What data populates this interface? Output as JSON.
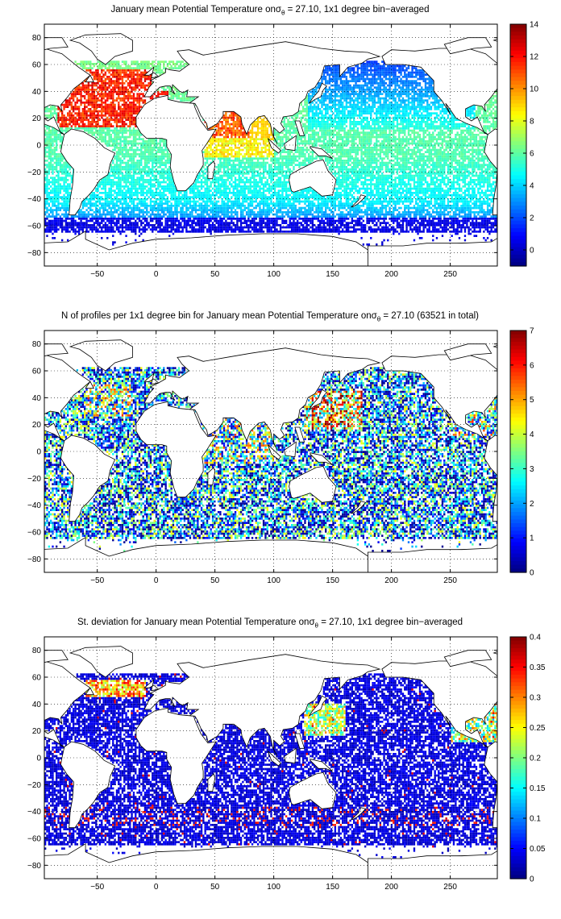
{
  "chart_data": [
    {
      "type": "heatmap",
      "title": "January mean Potential Temperature on",
      "title_sigma": "σ",
      "title_sub": "θ",
      "title_rest": " = 27.10, 1x1 degree bin−averaged",
      "x_ticks": [
        "−50",
        "0",
        "50",
        "100",
        "150",
        "200",
        "250"
      ],
      "x_tick_values": [
        -50,
        0,
        50,
        100,
        150,
        200,
        250
      ],
      "y_ticks": [
        "80",
        "60",
        "40",
        "20",
        "0",
        "−20",
        "−40",
        "−60",
        "−80"
      ],
      "y_tick_values": [
        80,
        60,
        40,
        20,
        0,
        -20,
        -40,
        -60,
        -80
      ],
      "xlim": [
        -95,
        290
      ],
      "ylim": [
        -90,
        90
      ],
      "grid": true,
      "colorbar_ticks": [
        "14",
        "12",
        "10",
        "8",
        "6",
        "4",
        "2",
        "0"
      ],
      "colorbar_tick_values": [
        14,
        12,
        10,
        8,
        6,
        4,
        2,
        0
      ],
      "clim": [
        -1,
        14
      ],
      "colormap": "jet"
    },
    {
      "type": "heatmap",
      "title": "N of profiles per 1x1 degree bin for January mean Potential Temperature on",
      "title_sigma": "σ",
      "title_sub": "θ",
      "title_rest": " = 27.10 (63521 in total)",
      "x_ticks": [
        "−50",
        "0",
        "50",
        "100",
        "150",
        "200",
        "250"
      ],
      "x_tick_values": [
        -50,
        0,
        50,
        100,
        150,
        200,
        250
      ],
      "y_ticks": [
        "80",
        "60",
        "40",
        "20",
        "0",
        "−20",
        "−40",
        "−60",
        "−80"
      ],
      "y_tick_values": [
        80,
        60,
        40,
        20,
        0,
        -20,
        -40,
        -60,
        -80
      ],
      "xlim": [
        -95,
        290
      ],
      "ylim": [
        -90,
        90
      ],
      "grid": true,
      "colorbar_ticks": [
        "7",
        "6",
        "5",
        "4",
        "3",
        "2",
        "1",
        "0"
      ],
      "colorbar_tick_values": [
        7,
        6,
        5,
        4,
        3,
        2,
        1,
        0
      ],
      "clim": [
        0,
        7
      ],
      "colormap": "jet"
    },
    {
      "type": "heatmap",
      "title": "St. deviation for January mean Potential Temperature on",
      "title_sigma": "σ",
      "title_sub": "θ",
      "title_rest": " = 27.10, 1x1 degree bin−averaged",
      "x_ticks": [
        "−50",
        "0",
        "50",
        "100",
        "150",
        "200",
        "250"
      ],
      "x_tick_values": [
        -50,
        0,
        50,
        100,
        150,
        200,
        250
      ],
      "y_ticks": [
        "80",
        "60",
        "40",
        "20",
        "0",
        "−20",
        "−40",
        "−60",
        "−80"
      ],
      "y_tick_values": [
        80,
        60,
        40,
        20,
        0,
        -20,
        -40,
        -60,
        -80
      ],
      "xlim": [
        -95,
        290
      ],
      "ylim": [
        -90,
        90
      ],
      "grid": true,
      "colorbar_ticks": [
        "0.4",
        "0.35",
        "0.3",
        "0.25",
        "0.2",
        "0.15",
        "0.1",
        "0.05",
        "0"
      ],
      "colorbar_tick_values": [
        0.4,
        0.35,
        0.3,
        0.25,
        0.2,
        0.15,
        0.1,
        0.05,
        0
      ],
      "clim": [
        0,
        0.4
      ],
      "colormap": "jet"
    }
  ]
}
